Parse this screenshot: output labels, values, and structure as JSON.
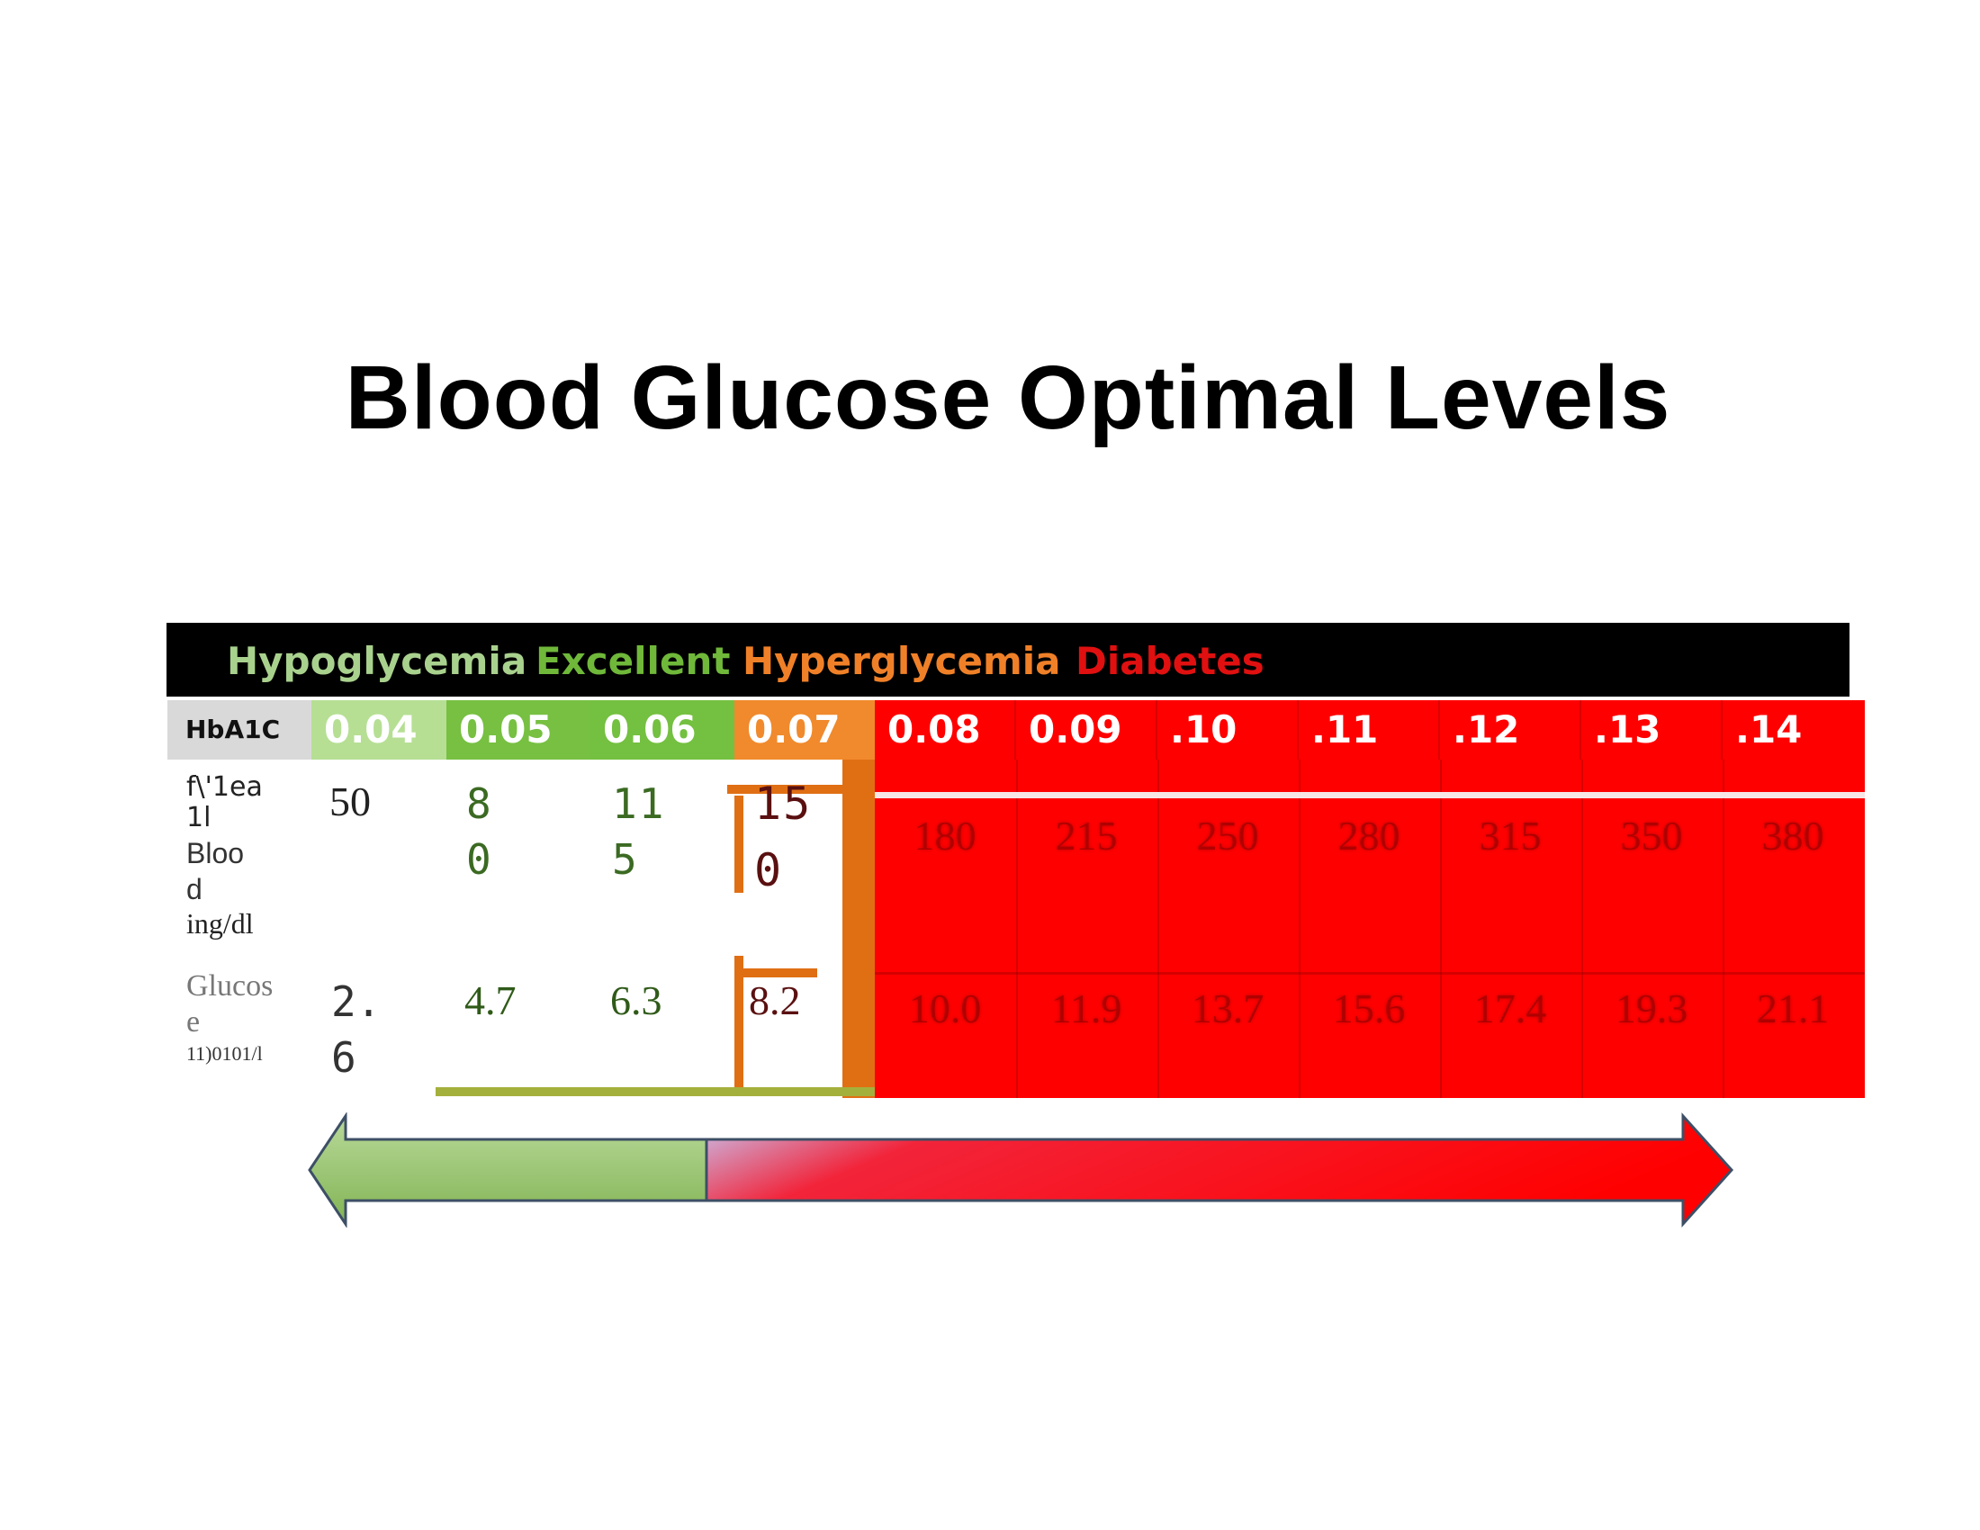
{
  "title": "Blood Glucose Optimal Levels",
  "legend": [
    {
      "label": "Hypoglycemia",
      "color": "#a9d18e"
    },
    {
      "label": "Excellent",
      "color": "#6fb83a"
    },
    {
      "label": "Hyperglycemia",
      "color": "#f08028"
    },
    {
      "label": "Diabetes",
      "color": "#e01010"
    }
  ],
  "hba1c_label": "HbA1C",
  "hba1c": [
    {
      "label": "0.04",
      "color": "#b6df94"
    },
    {
      "label": "0.05",
      "color": "#77c042"
    },
    {
      "label": "0.06",
      "color": "#74c040"
    },
    {
      "label": "0.07",
      "color": "#f08a2c"
    },
    {
      "label": "0.08",
      "color": "#ff0000"
    },
    {
      "label": "0.09",
      "color": "#ff0000"
    },
    {
      "label": ".10",
      "color": "#ff0000"
    },
    {
      "label": ".11",
      "color": "#ff0000"
    },
    {
      "label": ".12",
      "color": "#ff0000"
    },
    {
      "label": ".13",
      "color": "#ff0000"
    },
    {
      "label": ".14",
      "color": "#ff0000"
    }
  ],
  "mean_label": {
    "l1": "f\\'1ea",
    "l2": "1l",
    "l3": "Bloo",
    "l4": "d",
    "l5": "ing/dl"
  },
  "glucose_label": {
    "l1": "Glucos",
    "l2": "e",
    "l3": "11)0101/l"
  },
  "mean_values": {
    "v50": "50",
    "v80": {
      "a": "8",
      "b": "0"
    },
    "v115": {
      "a": "11",
      "b": "5"
    },
    "v150": {
      "a": "15",
      "b": "0"
    },
    "red": [
      "180",
      "215",
      "250",
      "280",
      "315",
      "350",
      "380"
    ]
  },
  "glucose_values": {
    "v26": {
      "a": "2.",
      "b": "6"
    },
    "v47": "4.7",
    "v63": "6.3",
    "v82": "8.2",
    "red": [
      "10.0",
      "11.9",
      "13.7",
      "15.6",
      "17.4",
      "19.3",
      "21.1"
    ]
  },
  "colors": {
    "red": "#ff0000",
    "orange": "#e06f14",
    "green_text": "#3b6a22",
    "dark_red_text": "#5a1010"
  }
}
